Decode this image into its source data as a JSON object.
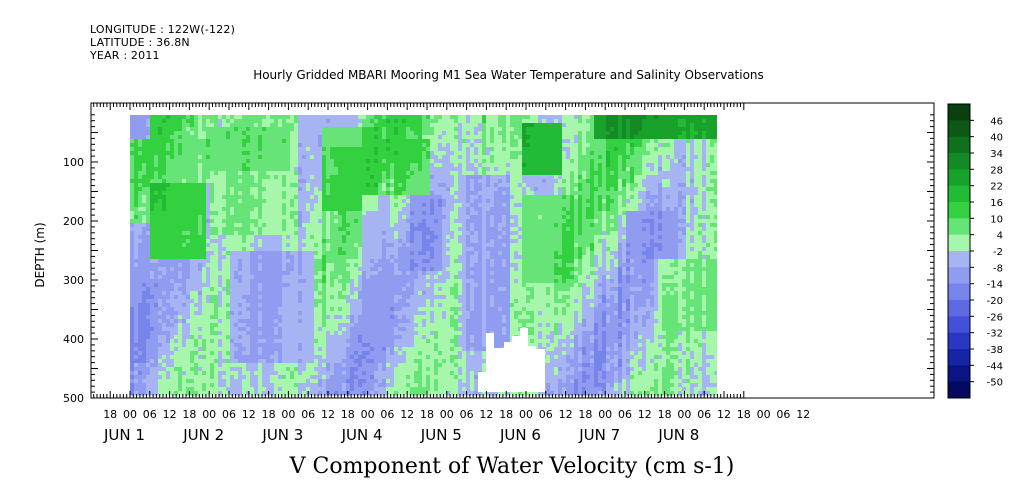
{
  "header": {
    "longitude": "LONGITUDE : 122W(-122)",
    "latitude": "LATITUDE : 36.8N",
    "year": "YEAR : 2011"
  },
  "chart_data": {
    "type": "heatmap",
    "title": "Hourly Gridded MBARI Mooring M1 Sea Water Temperature and Salinity Observations",
    "xlabel": "V Component of Water Velocity (cm s-1)",
    "ylabel": "DEPTH (m)",
    "ylim": [
      500,
      0
    ],
    "y_ticks": [
      100,
      200,
      300,
      400,
      500
    ],
    "x_hour_ticks": [
      "18",
      "00",
      "06",
      "12",
      "18",
      "00",
      "06",
      "12",
      "18",
      "00",
      "06",
      "12",
      "18",
      "00",
      "06",
      "12",
      "18",
      "00",
      "06",
      "12",
      "18",
      "00",
      "06",
      "12",
      "18",
      "00",
      "06",
      "12",
      "18",
      "00",
      "06",
      "12",
      "18",
      "00",
      "06",
      "12"
    ],
    "x_day_labels": [
      "JUN 1",
      "JUN 2",
      "JUN 3",
      "JUN 4",
      "JUN 5",
      "JUN 6",
      "JUN 7",
      "JUN 8"
    ],
    "colorbar_levels": [
      "46",
      "40",
      "34",
      "28",
      "22",
      "16",
      "10",
      "4",
      "-2",
      "-8",
      "-14",
      "-20",
      "-26",
      "-32",
      "-38",
      "-44",
      "-50"
    ],
    "colorbar_colors": [
      "#0a3f10",
      "#0c5816",
      "#0f711d",
      "#138a24",
      "#18a22b",
      "#22bb35",
      "#33d040",
      "#66e477",
      "#a6f6ab",
      "#a7b4f4",
      "#8f9cf0",
      "#7784ea",
      "#5e69e2",
      "#4350d8",
      "#2a37c5",
      "#1624a8",
      "#0b1485",
      "#050a60"
    ],
    "data_extent_hours": {
      "start": 0,
      "end": 178
    },
    "data_depth_range_m": [
      20,
      490
    ],
    "regions": [
      {
        "t": [
          0,
          6
        ],
        "d": [
          20,
          60
        ],
        "v": -20
      },
      {
        "t": [
          0,
          24
        ],
        "d": [
          60,
          130
        ],
        "v": 8
      },
      {
        "t": [
          6,
          22
        ],
        "d": [
          130,
          260
        ],
        "v": 20
      },
      {
        "t": [
          0,
          5
        ],
        "d": [
          200,
          440
        ],
        "v": -12
      },
      {
        "t": [
          22,
          48
        ],
        "d": [
          40,
          110
        ],
        "v": 10
      },
      {
        "t": [
          24,
          50
        ],
        "d": [
          110,
          220
        ],
        "v": 6
      },
      {
        "t": [
          30,
          55
        ],
        "d": [
          250,
          440
        ],
        "v": -10
      },
      {
        "t": [
          50,
          70
        ],
        "d": [
          20,
          70
        ],
        "v": -6
      },
      {
        "t": [
          58,
          75
        ],
        "d": [
          40,
          180
        ],
        "v": 14
      },
      {
        "t": [
          70,
          78
        ],
        "d": [
          150,
          400
        ],
        "v": -8
      },
      {
        "t": [
          80,
          90
        ],
        "d": [
          60,
          150
        ],
        "v": 12
      },
      {
        "t": [
          84,
          94
        ],
        "d": [
          150,
          280
        ],
        "v": -14
      },
      {
        "t": [
          100,
          114
        ],
        "d": [
          120,
          420
        ],
        "v": -10
      },
      {
        "t": [
          118,
          130
        ],
        "d": [
          30,
          120
        ],
        "v": 28
      },
      {
        "t": [
          118,
          134
        ],
        "d": [
          150,
          300
        ],
        "v": 10
      },
      {
        "t": [
          140,
          178
        ],
        "d": [
          20,
          60
        ],
        "v": 30
      },
      {
        "t": [
          150,
          166
        ],
        "d": [
          180,
          260
        ],
        "v": -12
      },
      {
        "t": [
          160,
          178
        ],
        "d": [
          260,
          380
        ],
        "v": 6
      }
    ]
  }
}
